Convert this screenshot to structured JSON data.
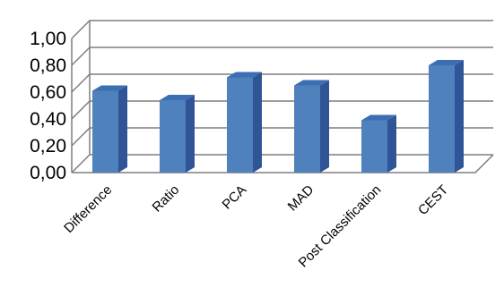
{
  "chart_data": {
    "type": "bar",
    "style": "3d-column",
    "title": "",
    "xlabel": "",
    "ylabel": "",
    "categories": [
      "Difference",
      "Ratio",
      "PCA",
      "MAD",
      "Post Classification",
      "CEST"
    ],
    "values": [
      0.61,
      0.54,
      0.71,
      0.65,
      0.39,
      0.8
    ],
    "ylim": [
      0,
      1
    ],
    "yticks": [
      0,
      0.2,
      0.4,
      0.6,
      0.8,
      1.0
    ],
    "ytick_labels": [
      "0,00",
      "0,20",
      "0,40",
      "0,60",
      "0,80",
      "1,00"
    ],
    "grid": true,
    "legend": "none",
    "colors": {
      "bar_front": "#4F81BD",
      "bar_side": "#2F5597",
      "bar_top": "#3C6EB4",
      "grid": "#7F7F7F"
    }
  }
}
